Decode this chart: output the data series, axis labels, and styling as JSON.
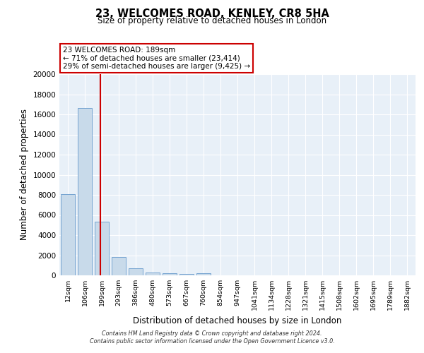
{
  "title": "23, WELCOMES ROAD, KENLEY, CR8 5HA",
  "subtitle": "Size of property relative to detached houses in London",
  "xlabel": "Distribution of detached houses by size in London",
  "ylabel": "Number of detached properties",
  "annotation_line1": "23 WELCOMES ROAD: 189sqm",
  "annotation_line2": "← 71% of detached houses are smaller (23,414)",
  "annotation_line3": "29% of semi-detached houses are larger (9,425) →",
  "footer_line1": "Contains HM Land Registry data © Crown copyright and database right 2024.",
  "footer_line2": "Contains public sector information licensed under the Open Government Licence v3.0.",
  "categories": [
    "12sqm",
    "106sqm",
    "199sqm",
    "293sqm",
    "386sqm",
    "480sqm",
    "573sqm",
    "667sqm",
    "760sqm",
    "854sqm",
    "947sqm",
    "1041sqm",
    "1134sqm",
    "1228sqm",
    "1321sqm",
    "1415sqm",
    "1508sqm",
    "1602sqm",
    "1695sqm",
    "1789sqm",
    "1882sqm"
  ],
  "values": [
    8100,
    16600,
    5300,
    1850,
    700,
    300,
    200,
    130,
    190,
    0,
    0,
    0,
    0,
    0,
    0,
    0,
    0,
    0,
    0,
    0,
    0
  ],
  "bar_color": "#c8daea",
  "bar_edge_color": "#6699cc",
  "vline_color": "#cc0000",
  "vline_x_index": 2,
  "ylim": [
    0,
    20000
  ],
  "yticks": [
    0,
    2000,
    4000,
    6000,
    8000,
    10000,
    12000,
    14000,
    16000,
    18000,
    20000
  ],
  "fig_bg": "#ffffff",
  "plot_bg": "#e8f0f8"
}
